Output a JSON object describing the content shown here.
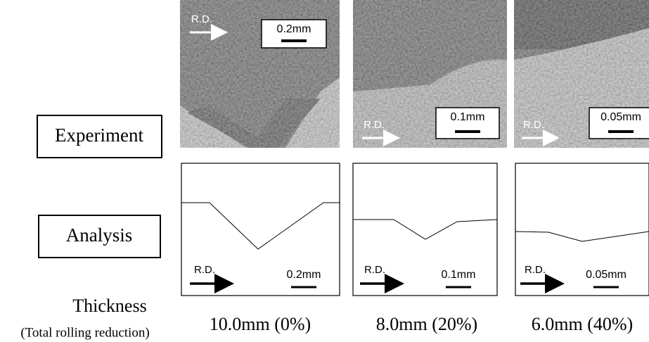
{
  "row_labels": {
    "experiment": "Experiment",
    "analysis": "Analysis"
  },
  "thickness_label": "Thickness",
  "thickness_sub": "(Total rolling reduction)",
  "columns": [
    {
      "label": "10.0mm (0%)",
      "experiment": {
        "direction": "R.D.",
        "scale": "0.2mm"
      },
      "analysis": {
        "direction": "R.D.",
        "scale": "0.2mm"
      }
    },
    {
      "label": "8.0mm (20%)",
      "experiment": {
        "direction": "R.D.",
        "scale": "0.1mm"
      },
      "analysis": {
        "direction": "R.D.",
        "scale": "0.1mm"
      }
    },
    {
      "label": "6.0mm (40%)",
      "experiment": {
        "direction": "R.D.",
        "scale": "0.05mm"
      },
      "analysis": {
        "direction": "R.D.",
        "scale": "0.05mm"
      }
    }
  ]
}
